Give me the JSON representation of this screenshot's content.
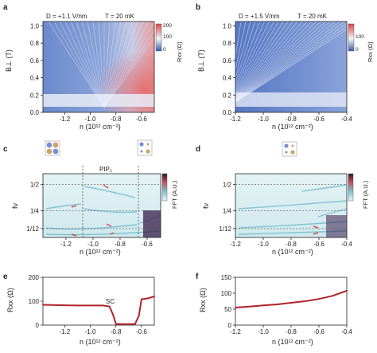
{
  "panels": {
    "a": {
      "label": "a",
      "d_text": "D = +1.1 V/nm",
      "t_text": "T = 20 mK",
      "ylabel": "B⊥ (T)",
      "xlabel": "n (10¹² cm⁻²)",
      "cbar_label": "Rxx (Ω)",
      "cbar_ticks": [
        "0",
        "100",
        "200"
      ]
    },
    "b": {
      "label": "b",
      "d_text": "D = +1.5 V/nm",
      "t_text": "T = 20 mK",
      "ylabel": "B⊥ (T)",
      "xlabel": "n (10¹² cm⁻²)",
      "cbar_label": "Rxx (Ω)",
      "cbar_ticks": [
        "0",
        "100"
      ]
    },
    "c": {
      "label": "c",
      "ylabel": "fν",
      "xlabel": "n (10¹² cm⁻²)",
      "cbar_label": "FFT (A.U.)",
      "annotation": "PIP₂"
    },
    "d": {
      "label": "d",
      "ylabel": "fν",
      "xlabel": "n (10¹² cm⁻²)",
      "cbar_label": "FFT (A.U.)"
    },
    "e": {
      "label": "e",
      "ylabel": "Rxx (Ω)",
      "xlabel": "n (10¹² cm⁻²)",
      "annotation": "SC"
    },
    "f": {
      "label": "f",
      "ylabel": "Rxx (Ω)",
      "xlabel": "n (10¹² cm⁻²)"
    }
  },
  "colors": {
    "negative": "#3b5bb4",
    "mid": "#f4f4f4",
    "positive": "#d9474b",
    "trace": "#b0232a",
    "fft_low": "#d6eef2",
    "fft_high": "#3a1d4a"
  },
  "chart_data": [
    {
      "panel": "a",
      "type": "heatmap",
      "x_ticks": [
        -1.2,
        -1.0,
        -0.8,
        -0.6
      ],
      "y_ticks": [
        0.0,
        0.2,
        0.4,
        0.6,
        0.8,
        1.0
      ],
      "xlim": [
        -1.37,
        -0.5
      ],
      "ylim": [
        0,
        1.05
      ],
      "colorbar_range": [
        0,
        200
      ]
    },
    {
      "panel": "b",
      "type": "heatmap",
      "x_ticks": [
        -1.2,
        -1.0,
        -0.8,
        -0.6,
        -0.4
      ],
      "y_ticks": [
        0.0,
        0.2,
        0.4,
        0.6,
        0.8,
        1.0
      ],
      "xlim": [
        -1.2,
        -0.4
      ],
      "ylim": [
        0,
        1.05
      ],
      "colorbar_range": [
        0,
        150
      ]
    },
    {
      "panel": "c",
      "type": "heatmap",
      "x_ticks": [
        -1.2,
        -1.0,
        -0.8,
        -0.6
      ],
      "y_ticks": [
        "1/2",
        "1/4",
        "1/12"
      ],
      "y_values": [
        0.5,
        0.25,
        0.0833
      ],
      "xlim": [
        -1.37,
        -0.5
      ],
      "ylim": [
        0,
        0.6
      ]
    },
    {
      "panel": "d",
      "type": "heatmap",
      "x_ticks": [
        -1.2,
        -1.0,
        -0.8,
        -0.6,
        -0.4
      ],
      "y_ticks": [
        "1/2",
        "1/4",
        "1/12"
      ],
      "y_values": [
        0.5,
        0.25,
        0.0833
      ],
      "xlim": [
        -1.2,
        -0.4
      ],
      "ylim": [
        0,
        0.6
      ]
    },
    {
      "panel": "e",
      "type": "line",
      "xlim": [
        -1.37,
        -0.5
      ],
      "ylim": [
        0,
        200
      ],
      "x_ticks": [
        -1.2,
        -1.0,
        -0.8,
        -0.6
      ],
      "y_ticks": [
        0,
        100,
        200
      ],
      "x": [
        -1.37,
        -1.3,
        -1.2,
        -1.1,
        -1.0,
        -0.9,
        -0.85,
        -0.82,
        -0.8,
        -0.75,
        -0.7,
        -0.65,
        -0.62,
        -0.6,
        -0.55,
        -0.5
      ],
      "y": [
        85,
        84,
        83,
        82,
        82,
        82,
        78,
        40,
        5,
        4,
        4,
        5,
        40,
        108,
        112,
        120
      ]
    },
    {
      "panel": "f",
      "type": "line",
      "xlim": [
        -1.2,
        -0.4
      ],
      "ylim": [
        0,
        150
      ],
      "x_ticks": [
        -1.2,
        -1.0,
        -0.8,
        -0.6,
        -0.4
      ],
      "y_ticks": [
        0,
        50,
        100,
        150
      ],
      "x": [
        -1.2,
        -1.1,
        -1.0,
        -0.9,
        -0.8,
        -0.7,
        -0.6,
        -0.5,
        -0.4
      ],
      "y": [
        55,
        58,
        62,
        65,
        70,
        75,
        82,
        92,
        108
      ]
    }
  ]
}
